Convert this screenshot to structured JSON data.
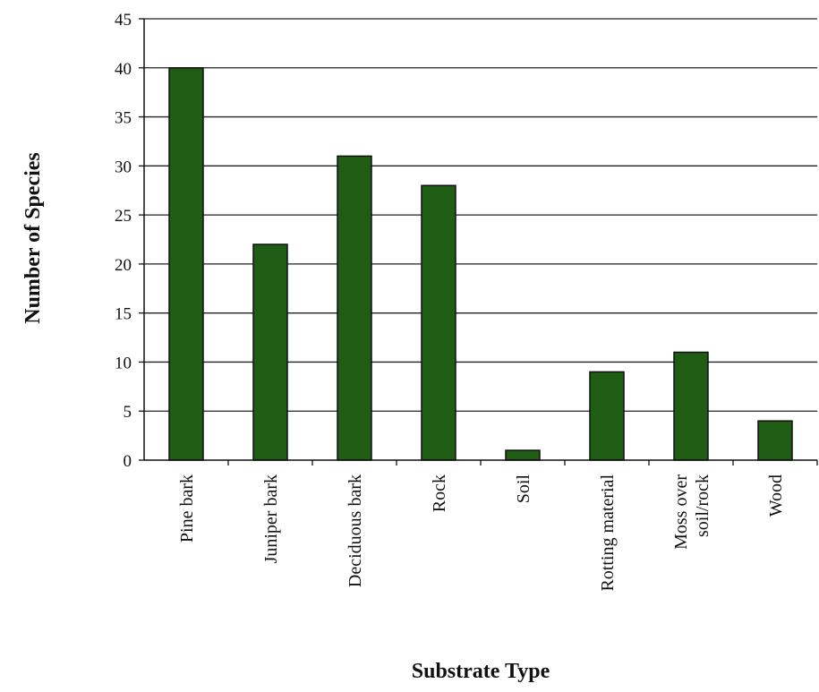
{
  "chart_data": {
    "type": "bar",
    "title": "",
    "xlabel": "Substrate Type",
    "ylabel": "Number of Species",
    "categories": [
      [
        "Pine bark"
      ],
      [
        "Juniper bark"
      ],
      [
        "Deciduous bark"
      ],
      [
        "Rock"
      ],
      [
        "Soil"
      ],
      [
        "Rotting material"
      ],
      [
        "Moss over",
        "soil/rock"
      ],
      [
        "Wood"
      ]
    ],
    "values": [
      40,
      22,
      31,
      28,
      1,
      9,
      11,
      4
    ],
    "ylim": [
      0,
      45
    ],
    "yticks": [
      0,
      5,
      10,
      15,
      20,
      25,
      30,
      35,
      40,
      45
    ],
    "grid": true,
    "legend": "none",
    "colors": {
      "bar_fill": "#1f5c14",
      "bar_stroke": "#111111",
      "grid": "#222222",
      "axis": "#111111"
    }
  }
}
